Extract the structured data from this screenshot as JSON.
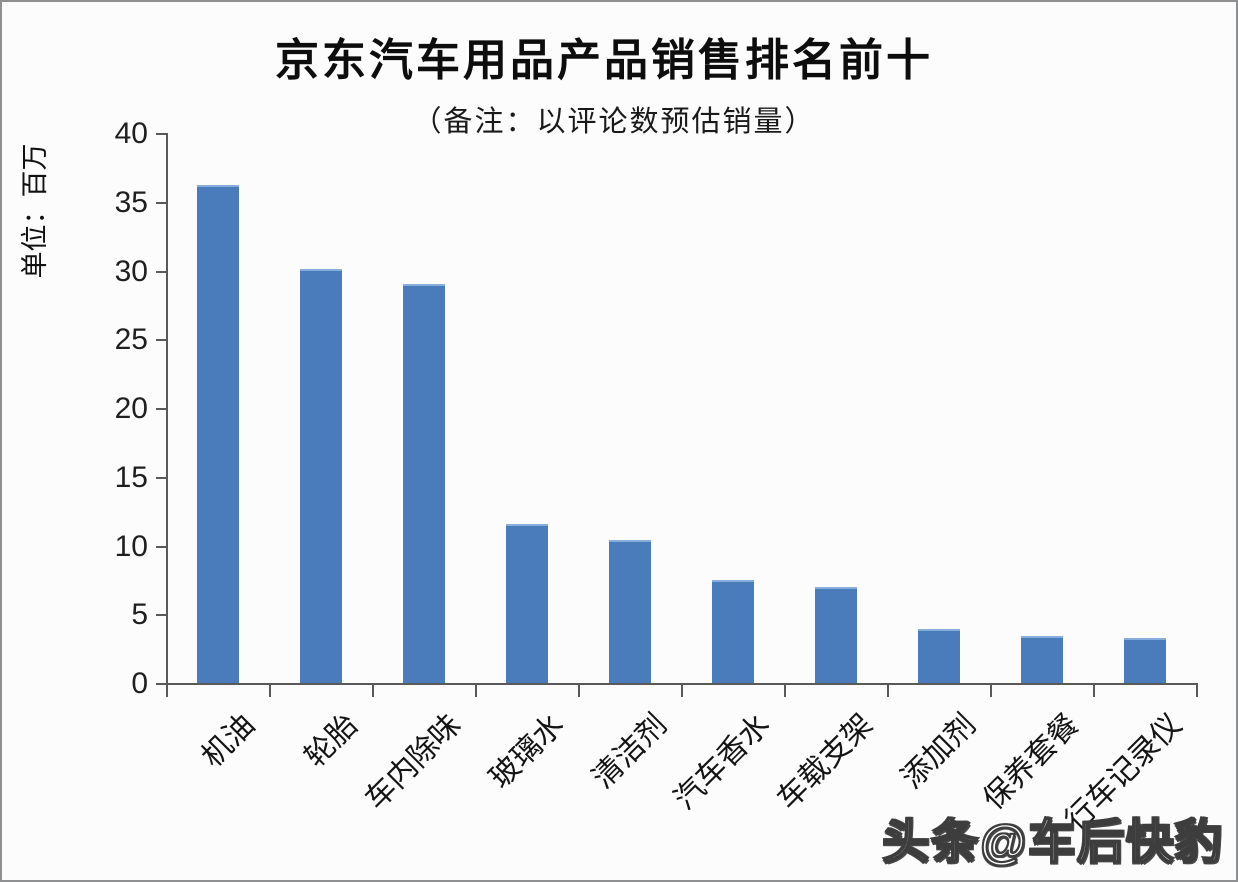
{
  "chart_data": {
    "type": "bar",
    "title": "京东汽车用品产品销售排名前十",
    "subtitle": "（备注：以评论数预估销量）",
    "ylabel": "单位：百万",
    "xlabel": "",
    "categories": [
      "机油",
      "轮胎",
      "车内除味",
      "玻璃水",
      "清洁剂",
      "汽车香水",
      "车载支架",
      "添加剂",
      "保养套餐",
      "行车记录仪"
    ],
    "values": [
      36.2,
      30.1,
      29.0,
      11.6,
      10.4,
      7.5,
      7.0,
      3.9,
      3.4,
      3.3
    ],
    "ylim": [
      0,
      40
    ],
    "yticks": [
      0,
      5,
      10,
      15,
      20,
      25,
      30,
      35,
      40
    ],
    "grid": false,
    "legend_position": "none",
    "bar_color": "#4a7cbb",
    "axis_color": "#595959"
  },
  "watermark": {
    "text": "头条@车后快豹"
  }
}
